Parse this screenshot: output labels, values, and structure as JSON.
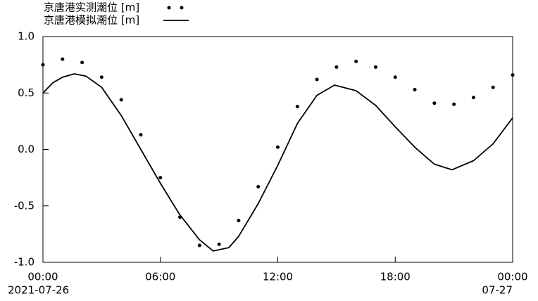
{
  "chart_data": {
    "type": "line",
    "xlim": [
      0,
      24
    ],
    "xticks": [
      {
        "value": 0,
        "label": "00:00"
      },
      {
        "value": 6,
        "label": "06:00"
      },
      {
        "value": 12,
        "label": "12:00"
      },
      {
        "value": 18,
        "label": "18:00"
      },
      {
        "value": 24,
        "label": "00:00"
      }
    ],
    "x_date_labels": [
      {
        "value": 0,
        "label": "2021-07-26"
      },
      {
        "value": 24,
        "label": "07-27"
      }
    ],
    "ylim": [
      -1.0,
      1.0
    ],
    "yticks": [
      {
        "value": -1.0,
        "label": "-1.0"
      },
      {
        "value": -0.5,
        "label": "-0.5"
      },
      {
        "value": 0,
        "label": "0.0"
      },
      {
        "value": 0.5,
        "label": "0.5"
      },
      {
        "value": 1.0,
        "label": "1.0"
      }
    ],
    "series": [
      {
        "name": "京唐港实测潮位 [m]",
        "style": "dots",
        "color": "#000000",
        "x": [
          0,
          1,
          2,
          3,
          4,
          5,
          6,
          7,
          8,
          9,
          10,
          11,
          12,
          13,
          14,
          15,
          16,
          17,
          18,
          19,
          20,
          21,
          22,
          23,
          24
        ],
        "values": [
          0.75,
          0.8,
          0.77,
          0.64,
          0.44,
          0.13,
          -0.25,
          -0.6,
          -0.85,
          -0.84,
          -0.63,
          -0.33,
          0.02,
          0.38,
          0.62,
          0.73,
          0.78,
          0.73,
          0.64,
          0.53,
          0.41,
          0.4,
          0.46,
          0.55,
          0.66
        ]
      },
      {
        "name": "京唐港模拟潮位 [m]",
        "style": "line",
        "color": "#000000",
        "x": [
          0,
          0.5,
          1,
          1.6,
          2.2,
          3,
          4,
          5,
          6,
          7,
          8,
          8.7,
          9.5,
          10,
          11,
          12,
          13,
          14,
          14.9,
          16,
          17,
          18,
          19,
          20,
          20.9,
          22,
          23,
          24
        ],
        "values": [
          0.5,
          0.59,
          0.64,
          0.67,
          0.65,
          0.55,
          0.3,
          0.0,
          -0.3,
          -0.58,
          -0.8,
          -0.9,
          -0.87,
          -0.77,
          -0.48,
          -0.14,
          0.23,
          0.48,
          0.57,
          0.52,
          0.39,
          0.2,
          0.02,
          -0.13,
          -0.18,
          -0.1,
          0.05,
          0.28
        ]
      }
    ]
  }
}
